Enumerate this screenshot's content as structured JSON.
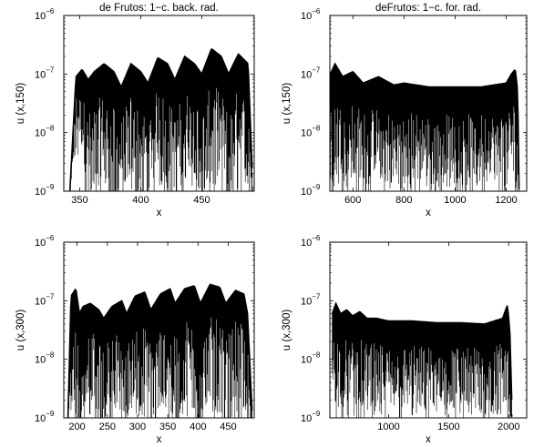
{
  "chart_data": [
    {
      "type": "area",
      "title": "de Frutos: 1−c. back. rad.",
      "xlabel": "x",
      "ylabel": "u (x,150)",
      "xlim": [
        337,
        493
      ],
      "ylim_exponent": [
        -9,
        -6
      ],
      "yscale": "log",
      "xticks": [
        350,
        400,
        450
      ],
      "yticks": [
        {
          "base": "10",
          "exp": "−9"
        },
        {
          "base": "10",
          "exp": "−8"
        },
        {
          "base": "10",
          "exp": "−7"
        },
        {
          "base": "10",
          "exp": "−6"
        }
      ],
      "series": [
        {
          "style": "dense oscillation envelope with lobes",
          "x": [
            342,
            347,
            352,
            357,
            362,
            370,
            378,
            384,
            392,
            400,
            406,
            414,
            422,
            428,
            436,
            444,
            450,
            458,
            466,
            472,
            480,
            488,
            492
          ],
          "y_upper": [
            1e-09,
            9e-08,
            1.2e-07,
            8e-08,
            1.1e-07,
            1.5e-07,
            1.1e-07,
            6e-08,
            1.5e-07,
            1.1e-07,
            7e-08,
            1.9e-07,
            1.5e-07,
            8e-08,
            2e-07,
            1.5e-07,
            1e-07,
            2.7e-07,
            2e-07,
            1e-07,
            2.2e-07,
            1.5e-07,
            1e-09
          ],
          "y_lower": [
            1e-09,
            1e-08,
            5e-09,
            1e-09,
            2e-09,
            3e-09,
            1e-09,
            1e-09,
            3e-09,
            1e-09,
            1e-09,
            4e-09,
            2e-09,
            1e-09,
            3e-09,
            2e-09,
            1e-09,
            3e-09,
            2e-09,
            1e-09,
            3e-09,
            2e-09,
            1e-09
          ]
        }
      ],
      "grid": false
    },
    {
      "type": "area",
      "title": "deFrutos: 1−c. for. rad.",
      "xlabel": "x",
      "ylabel": "u (x,150)",
      "xlim": [
        510,
        1280
      ],
      "ylim_exponent": [
        -9,
        -6
      ],
      "yscale": "log",
      "xticks": [
        600,
        800,
        1000,
        1200
      ],
      "yticks": [
        {
          "base": "10",
          "exp": "−9"
        },
        {
          "base": "10",
          "exp": "−8"
        },
        {
          "base": "10",
          "exp": "−7"
        },
        {
          "base": "10",
          "exp": "−6"
        }
      ],
      "series": [
        {
          "style": "dense oscillation band",
          "x": [
            512,
            530,
            560,
            600,
            640,
            700,
            760,
            800,
            900,
            1000,
            1100,
            1150,
            1200,
            1220,
            1235,
            1245,
            1250
          ],
          "y_upper": [
            1e-07,
            1.5e-07,
            9e-08,
            1.1e-07,
            7e-08,
            9e-08,
            6.5e-08,
            7e-08,
            6e-08,
            6e-08,
            6e-08,
            6.5e-08,
            7e-08,
            1e-07,
            1.2e-07,
            5e-08,
            1e-09
          ],
          "y_lower": [
            1e-09,
            3e-09,
            2e-09,
            3e-09,
            2e-09,
            2e-09,
            2e-09,
            2e-09,
            2e-09,
            2e-09,
            2e-09,
            2e-09,
            2e-09,
            2e-09,
            3e-09,
            1e-09,
            1e-09
          ]
        }
      ],
      "grid": false
    },
    {
      "type": "area",
      "title": "",
      "xlabel": "x",
      "ylabel": "u (x,300)",
      "xlim": [
        178,
        493
      ],
      "ylim_exponent": [
        -9,
        -6
      ],
      "yscale": "log",
      "xticks": [
        200,
        250,
        300,
        350,
        400,
        450
      ],
      "yticks": [
        {
          "base": "10",
          "exp": "−9"
        },
        {
          "base": "10",
          "exp": "−8"
        },
        {
          "base": "10",
          "exp": "−7"
        },
        {
          "base": "10",
          "exp": "−6"
        }
      ],
      "series": [
        {
          "style": "dense oscillation envelope with lobes",
          "x": [
            185,
            190,
            198,
            204,
            210,
            222,
            236,
            244,
            258,
            274,
            282,
            296,
            312,
            322,
            338,
            354,
            362,
            378,
            394,
            404,
            420,
            436,
            446,
            462,
            476,
            482,
            490
          ],
          "y_upper": [
            1e-09,
            1.2e-07,
            1.6e-07,
            6e-08,
            8e-08,
            9e-08,
            7e-08,
            5e-08,
            8e-08,
            1e-07,
            6e-08,
            1.2e-07,
            1.4e-07,
            7e-08,
            1.3e-07,
            1.6e-07,
            9e-08,
            1.6e-07,
            1.8e-07,
            9e-08,
            1.9e-07,
            1.7e-07,
            9e-08,
            1.5e-07,
            1.3e-07,
            6e-08,
            1e-09
          ],
          "y_lower": [
            1e-09,
            3e-09,
            2e-09,
            1e-09,
            2e-09,
            3e-09,
            1e-09,
            1e-09,
            3e-09,
            2e-09,
            1e-09,
            3e-09,
            2e-09,
            1e-09,
            3e-09,
            2e-09,
            1e-09,
            3e-09,
            2e-09,
            1e-09,
            3e-09,
            2e-09,
            1e-09,
            3e-09,
            2e-09,
            1e-09,
            1e-09
          ]
        }
      ],
      "grid": false
    },
    {
      "type": "area",
      "title": "",
      "xlabel": "x",
      "ylabel": "u (x,300)",
      "xlim": [
        510,
        2150
      ],
      "ylim_exponent": [
        -9,
        -6
      ],
      "yscale": "log",
      "xticks": [
        1000,
        1500,
        2000
      ],
      "yticks": [
        {
          "base": "10",
          "exp": "−9"
        },
        {
          "base": "10",
          "exp": "−8"
        },
        {
          "base": "10",
          "exp": "−7"
        },
        {
          "base": "10",
          "exp": "−6"
        }
      ],
      "series": [
        {
          "style": "dense oscillation band",
          "x": [
            530,
            560,
            600,
            650,
            700,
            760,
            820,
            900,
            1000,
            1200,
            1400,
            1600,
            1800,
            1950,
            1990,
            2010,
            2030
          ],
          "y_upper": [
            6e-08,
            9e-08,
            6e-08,
            7e-08,
            5.5e-08,
            6.5e-08,
            5e-08,
            5e-08,
            4.5e-08,
            4.5e-08,
            4.2e-08,
            4.2e-08,
            4e-08,
            5e-08,
            8.5e-08,
            3e-08,
            1e-09
          ],
          "y_lower": [
            2e-09,
            3e-09,
            2e-09,
            2e-09,
            2e-09,
            2e-09,
            2e-09,
            2e-09,
            2e-09,
            2e-09,
            2e-09,
            2e-09,
            2e-09,
            2e-09,
            3e-09,
            1e-09,
            1e-09
          ]
        }
      ],
      "grid": false
    }
  ]
}
